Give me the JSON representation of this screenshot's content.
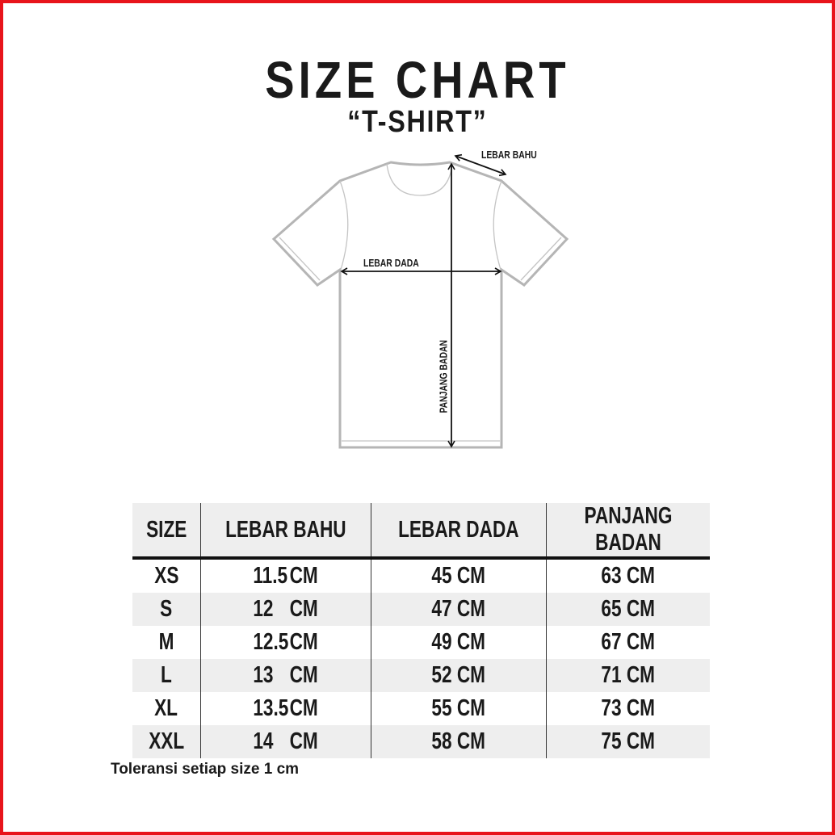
{
  "header": {
    "title": "SIZE CHART",
    "subtitle": "“T-SHIRT”"
  },
  "diagram": {
    "shoulder_label": "LEBAR BAHU",
    "chest_label": "LEBAR DADA",
    "length_label": "PANJANG BADAN",
    "outline_color": "#b5b5b5"
  },
  "table": {
    "headers": [
      "SIZE",
      "LEBAR BAHU",
      "LEBAR DADA",
      "PANJANG BADAN"
    ],
    "rows": [
      {
        "size": "XS",
        "bahu": "11.5",
        "bahu_unit": "CM",
        "dada": "45 CM",
        "panjang": "63 CM"
      },
      {
        "size": "S",
        "bahu": "12",
        "bahu_unit": "CM",
        "dada": "47 CM",
        "panjang": "65 CM"
      },
      {
        "size": "M",
        "bahu": "12.5",
        "bahu_unit": "CM",
        "dada": "49 CM",
        "panjang": "67 CM"
      },
      {
        "size": "L",
        "bahu": "13",
        "bahu_unit": "CM",
        "dada": "52 CM",
        "panjang": "71 CM"
      },
      {
        "size": "XL",
        "bahu": "13.5",
        "bahu_unit": "CM",
        "dada": "55 CM",
        "panjang": "73 CM"
      },
      {
        "size": "XXL",
        "bahu": "14",
        "bahu_unit": "CM",
        "dada": "58 CM",
        "panjang": "75 CM"
      }
    ]
  },
  "note": "Toleransi setiap size 1 cm",
  "colors": {
    "border": "#e8141b",
    "row_alt": "#eeeeee"
  }
}
